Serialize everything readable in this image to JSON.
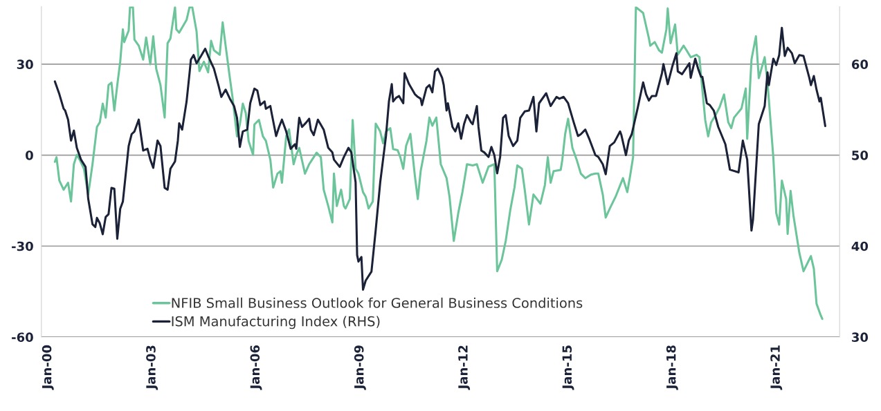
{
  "chart_data": {
    "type": "line",
    "xlim": [
      "1999-10-25",
      "2022-10-30"
    ],
    "xticks": [
      {
        "value": "2000-01-01",
        "label": "Jan-00"
      },
      {
        "value": "2003-01-01",
        "label": "Jan-03"
      },
      {
        "value": "2006-01-01",
        "label": "Jan-06"
      },
      {
        "value": "2009-01-01",
        "label": "Jan-09"
      },
      {
        "value": "2012-01-01",
        "label": "Jan-12"
      },
      {
        "value": "2015-01-01",
        "label": "Jan-15"
      },
      {
        "value": "2018-01-01",
        "label": "Jan-18"
      },
      {
        "value": "2021-01-01",
        "label": "Jan-21"
      }
    ],
    "ylim": [
      -60,
      49
    ],
    "yticks": [
      -60,
      -30,
      0,
      30
    ],
    "y2lim": [
      30,
      66.33
    ],
    "y2ticks": [
      30,
      40,
      50,
      60
    ],
    "grid": "y",
    "legend": "bottom",
    "series": [
      {
        "name": "NFIB Small Business Outlook for General Business Conditions",
        "color": "#6cc59a",
        "x": [
          "2000-03-15",
          "2000-04-01",
          "2000-05-01",
          "2000-06-15",
          "2000-08-01",
          "2000-09-01",
          "2000-10-01",
          "2000-11-01",
          "2000-12-01",
          "2001-01-15",
          "2001-03-01",
          "2001-04-15",
          "2001-06-01",
          "2001-07-01",
          "2001-08-01",
          "2001-09-01",
          "2001-10-01",
          "2001-11-01",
          "2001-12-01",
          "2002-01-01",
          "2002-02-01",
          "2002-03-01",
          "2002-03-15",
          "2002-05-01",
          "2002-05-15",
          "2002-06-15",
          "2002-07-01",
          "2002-08-15",
          "2002-10-01",
          "2002-11-01",
          "2002-12-15",
          "2003-01-15",
          "2003-02-15",
          "2003-04-01",
          "2003-05-15",
          "2003-06-15",
          "2003-07-15",
          "2003-09-01",
          "2003-09-15",
          "2003-10-15",
          "2004-01-01",
          "2004-02-01",
          "2004-03-01",
          "2004-04-15",
          "2004-05-15",
          "2004-07-01",
          "2004-08-15",
          "2004-09-15",
          "2004-10-15",
          "2004-12-15",
          "2005-01-15",
          "2005-02-15",
          "2005-04-01",
          "2005-05-01",
          "2005-06-15",
          "2005-07-15",
          "2005-08-15",
          "2005-09-15",
          "2005-10-15",
          "2005-12-01",
          "2005-12-15",
          "2006-02-01",
          "2006-03-15",
          "2006-04-15",
          "2006-06-01",
          "2006-07-01",
          "2006-08-15",
          "2006-09-15",
          "2006-10-01",
          "2006-11-15",
          "2006-12-15",
          "2007-02-01",
          "2007-03-01",
          "2007-04-01",
          "2007-06-01",
          "2007-07-15",
          "2007-08-15",
          "2007-10-01",
          "2007-11-15",
          "2007-12-15",
          "2008-02-01",
          "2008-03-15",
          "2008-04-01",
          "2008-05-01",
          "2008-06-15",
          "2008-07-15",
          "2008-08-01",
          "2008-09-15",
          "2008-10-15",
          "2008-11-15",
          "2008-12-15",
          "2009-02-01",
          "2009-03-01",
          "2009-04-01",
          "2009-05-15",
          "2009-06-15",
          "2009-08-01",
          "2009-09-01",
          "2009-10-01",
          "2009-11-15",
          "2009-12-15",
          "2010-02-01",
          "2010-03-01",
          "2010-04-01",
          "2010-05-01",
          "2010-06-15",
          "2010-08-01",
          "2010-09-01",
          "2010-10-01",
          "2010-12-01",
          "2011-01-01",
          "2011-02-01",
          "2011-03-15",
          "2011-05-01",
          "2011-07-01",
          "2011-08-01",
          "2011-09-15",
          "2011-11-01",
          "2011-12-15",
          "2012-02-01",
          "2012-04-01",
          "2012-05-15",
          "2012-07-15",
          "2012-09-15",
          "2012-11-15",
          "2012-12-15",
          "2013-02-01",
          "2013-03-15",
          "2013-05-01",
          "2013-06-15",
          "2013-07-15",
          "2013-09-01",
          "2013-10-01",
          "2013-11-15",
          "2014-01-01",
          "2014-03-15",
          "2014-05-01",
          "2014-06-01",
          "2014-07-01",
          "2014-08-01",
          "2014-10-15",
          "2014-11-01",
          "2014-12-01",
          "2015-01-01",
          "2015-02-15",
          "2015-04-01",
          "2015-05-15",
          "2015-07-01",
          "2015-09-01",
          "2015-10-15",
          "2015-11-15",
          "2016-01-01",
          "2016-02-01",
          "2016-03-15",
          "2016-05-15",
          "2016-08-01",
          "2016-09-15",
          "2016-10-15",
          "2016-11-15",
          "2016-12-15",
          "2017-03-01",
          "2017-05-01",
          "2017-05-15",
          "2017-07-01",
          "2017-08-15",
          "2017-09-15",
          "2017-11-01",
          "2017-11-15",
          "2017-12-15",
          "2018-02-01",
          "2018-03-01",
          "2018-05-01",
          "2018-06-01",
          "2018-07-15",
          "2018-09-15",
          "2018-10-15",
          "2018-11-01",
          "2018-12-15",
          "2019-01-15",
          "2019-02-15",
          "2019-04-01",
          "2019-05-15",
          "2019-07-01",
          "2019-08-15",
          "2019-09-15",
          "2019-10-15",
          "2020-01-01",
          "2020-02-15",
          "2020-03-01",
          "2020-04-15",
          "2020-06-01",
          "2020-07-01",
          "2020-09-01",
          "2020-10-01",
          "2020-12-01",
          "2021-01-01",
          "2021-02-01",
          "2021-03-01",
          "2021-04-15",
          "2021-05-01",
          "2021-06-01",
          "2021-07-01",
          "2021-09-01",
          "2021-10-15",
          "2022-01-01",
          "2022-02-01",
          "2022-03-01",
          "2022-04-15",
          "2022-05-01"
        ],
        "values": [
          -2.2,
          -0.7,
          -8.4,
          -11.4,
          -9.1,
          -15.3,
          -3.0,
          0.1,
          -1.5,
          -4.5,
          -13.0,
          -3.0,
          9.3,
          10.8,
          17.0,
          12.4,
          23.1,
          23.9,
          14.7,
          23.1,
          30.8,
          41.5,
          37.3,
          41.1,
          48.8,
          48.8,
          38.1,
          36.1,
          31.5,
          38.8,
          30.0,
          39.2,
          28.5,
          23.1,
          12.4,
          36.9,
          38.5,
          48.8,
          41.5,
          40.4,
          44.6,
          48.8,
          48.8,
          40.8,
          27.7,
          30.8,
          27.3,
          37.7,
          34.6,
          33.1,
          43.8,
          36.1,
          25.4,
          18.5,
          6.2,
          10.1,
          17.0,
          13.9,
          4.7,
          0.1,
          10.1,
          11.6,
          6.2,
          4.7,
          -1.5,
          -10.7,
          -6.1,
          -5.3,
          -9.1,
          6.2,
          8.5,
          -3.0,
          0.1,
          2.4,
          -6.1,
          -3.0,
          -1.5,
          0.8,
          -0.7,
          -11.4,
          -16.8,
          -22.2,
          -6.1,
          -16.8,
          -11.4,
          -16.8,
          -17.6,
          -14.5,
          11.6,
          -4.5,
          -6.1,
          -12.2,
          -13.7,
          -17.6,
          -15.3,
          10.4,
          7.8,
          3.9,
          7.8,
          8.9,
          2.0,
          1.6,
          -0.7,
          -4.5,
          3.1,
          7.0,
          -6.8,
          -14.5,
          -5.3,
          4.7,
          12.4,
          9.7,
          12.4,
          -3.0,
          -7.6,
          -13.7,
          -28.3,
          -19.1,
          -12.2,
          -3.0,
          -3.4,
          -3.0,
          -9.1,
          -3.8,
          -3.0,
          -38.3,
          -34.5,
          -28.3,
          -18.3,
          -10.7,
          -3.4,
          -4.5,
          -11.4,
          -22.9,
          -13.0,
          -16.0,
          -9.9,
          -0.7,
          -9.1,
          -5.3,
          -4.9,
          -1.5,
          7.0,
          12.0,
          2.4,
          -1.5,
          -6.1,
          -7.6,
          -6.4,
          -6.1,
          -6.1,
          -13.0,
          -20.6,
          -17.6,
          -13.7,
          -7.6,
          -12.2,
          -6.8,
          -0.7,
          48.8,
          46.9,
          38.5,
          36.1,
          37.3,
          34.6,
          33.8,
          41.5,
          48.4,
          36.9,
          43.1,
          33.1,
          36.1,
          34.6,
          32.3,
          33.1,
          32.3,
          26.2,
          11.6,
          6.2,
          10.8,
          13.1,
          15.8,
          20.0,
          10.8,
          8.9,
          12.4,
          15.4,
          22.0,
          5.4,
          31.5,
          39.2,
          25.4,
          32.3,
          23.9,
          -0.7,
          -19.1,
          -22.9,
          -8.4,
          -14.5,
          -26.0,
          -11.8,
          -19.9,
          -32.2,
          -38.3,
          -33.3,
          -37.5,
          -49.0,
          -52.9,
          -54.0
        ]
      },
      {
        "name": "ISM Manufacturing Index (RHS)",
        "color": "#1b2238",
        "axis": "y2",
        "x": [
          "2000-03-15",
          "2000-05-01",
          "2000-06-15",
          "2000-07-01",
          "2000-08-01",
          "2000-09-01",
          "2000-10-01",
          "2000-11-01",
          "2000-12-15",
          "2001-02-01",
          "2001-03-01",
          "2001-04-15",
          "2001-05-15",
          "2001-06-01",
          "2001-07-01",
          "2001-08-01",
          "2001-09-01",
          "2001-10-01",
          "2001-11-01",
          "2001-12-01",
          "2002-01-01",
          "2002-02-01",
          "2002-03-01",
          "2002-04-01",
          "2002-05-01",
          "2002-06-01",
          "2002-07-01",
          "2002-08-15",
          "2002-10-01",
          "2002-11-15",
          "2002-12-15",
          "2003-01-15",
          "2003-03-01",
          "2003-04-01",
          "2003-05-15",
          "2003-06-15",
          "2003-07-15",
          "2003-09-01",
          "2003-10-01",
          "2003-10-15",
          "2003-11-15",
          "2004-01-01",
          "2004-02-01",
          "2004-02-15",
          "2004-03-15",
          "2004-04-15",
          "2004-06-01",
          "2004-07-15",
          "2004-08-15",
          "2004-10-15",
          "2004-12-01",
          "2005-01-01",
          "2005-02-15",
          "2005-04-01",
          "2005-05-15",
          "2005-06-15",
          "2005-07-15",
          "2005-08-15",
          "2005-10-01",
          "2005-11-01",
          "2005-12-15",
          "2006-01-15",
          "2006-02-15",
          "2006-04-01",
          "2006-04-15",
          "2006-06-01",
          "2006-06-15",
          "2006-08-01",
          "2006-09-01",
          "2006-10-01",
          "2006-11-15",
          "2007-01-01",
          "2007-02-15",
          "2007-03-01",
          "2007-04-01",
          "2007-05-01",
          "2007-06-15",
          "2007-07-15",
          "2007-08-01",
          "2007-09-01",
          "2007-10-15",
          "2007-12-15",
          "2008-02-01",
          "2008-03-15",
          "2008-04-01",
          "2008-06-01",
          "2008-07-15",
          "2008-09-01",
          "2008-10-01",
          "2008-11-15",
          "2008-12-01",
          "2008-12-15",
          "2009-01-15",
          "2009-02-01",
          "2009-03-01",
          "2009-05-01",
          "2009-06-15",
          "2009-08-01",
          "2009-10-01",
          "2009-11-01",
          "2009-12-01",
          "2009-12-15",
          "2010-01-15",
          "2010-02-15",
          "2010-04-01",
          "2010-04-15",
          "2010-06-01",
          "2010-08-01",
          "2010-09-01",
          "2010-10-01",
          "2010-10-15",
          "2010-12-01",
          "2011-01-01",
          "2011-02-01",
          "2011-03-01",
          "2011-04-01",
          "2011-05-15",
          "2011-06-01",
          "2011-07-01",
          "2011-07-15",
          "2011-09-01",
          "2011-10-01",
          "2011-11-01",
          "2011-12-01",
          "2012-01-01",
          "2012-02-01",
          "2012-03-15",
          "2012-04-01",
          "2012-05-15",
          "2012-06-01",
          "2012-07-01",
          "2012-08-01",
          "2012-09-15",
          "2012-10-15",
          "2012-11-15",
          "2012-12-15",
          "2013-01-15",
          "2013-02-15",
          "2013-03-15",
          "2013-04-15",
          "2013-06-01",
          "2013-07-15",
          "2013-08-15",
          "2013-10-01",
          "2013-11-15",
          "2014-01-01",
          "2014-02-01",
          "2014-03-01",
          "2014-05-15",
          "2014-07-01",
          "2014-09-01",
          "2014-10-01",
          "2014-11-15",
          "2015-01-01",
          "2015-03-01",
          "2015-04-15",
          "2015-05-15",
          "2015-07-01",
          "2015-08-15",
          "2015-10-15",
          "2015-11-15",
          "2016-01-01",
          "2016-02-01",
          "2016-03-15",
          "2016-05-01",
          "2016-07-01",
          "2016-07-15",
          "2016-09-01",
          "2016-10-01",
          "2016-11-01",
          "2017-01-01",
          "2017-03-01",
          "2017-04-01",
          "2017-05-01",
          "2017-06-01",
          "2017-07-15",
          "2017-09-15",
          "2017-10-01",
          "2017-11-15",
          "2018-01-01",
          "2018-02-15",
          "2018-03-01",
          "2018-04-15",
          "2018-07-01",
          "2018-07-15",
          "2018-09-01",
          "2018-10-01",
          "2018-11-01",
          "2018-11-15",
          "2019-01-01",
          "2019-02-01",
          "2019-03-15",
          "2019-05-01",
          "2019-07-15",
          "2019-09-01",
          "2019-12-01",
          "2020-01-15",
          "2020-03-01",
          "2020-04-15",
          "2020-05-01",
          "2020-07-01",
          "2020-09-01",
          "2020-10-01",
          "2020-10-15",
          "2020-12-01",
          "2021-01-01",
          "2021-02-01",
          "2021-03-01",
          "2021-04-01",
          "2021-05-01",
          "2021-06-15",
          "2021-07-15",
          "2021-09-01",
          "2021-10-15",
          "2021-12-15",
          "2022-01-01",
          "2022-02-01",
          "2022-03-01",
          "2022-04-01",
          "2022-04-15",
          "2022-06-01"
        ],
        "values": [
          58.1,
          56.7,
          55.1,
          54.9,
          53.9,
          51.6,
          52.7,
          50.8,
          49.5,
          48.7,
          45.2,
          42.4,
          42.1,
          43.1,
          42.5,
          41.3,
          43.2,
          43.5,
          46.4,
          46.3,
          40.8,
          44.1,
          44.9,
          48.0,
          51.0,
          52.3,
          52.6,
          53.9,
          50.5,
          50.7,
          49.5,
          48.6,
          51.6,
          51.0,
          46.4,
          46.2,
          48.5,
          49.3,
          51.6,
          53.5,
          52.8,
          55.9,
          59.0,
          60.5,
          61.0,
          60.1,
          60.9,
          61.7,
          60.9,
          59.5,
          57.7,
          56.4,
          57.2,
          56.2,
          55.4,
          54.1,
          50.9,
          52.6,
          52.8,
          55.7,
          57.3,
          57.1,
          55.5,
          55.9,
          55.1,
          55.4,
          54.6,
          52.1,
          53.1,
          53.9,
          52.6,
          50.7,
          51.2,
          50.7,
          54.1,
          53.1,
          53.6,
          54.0,
          52.8,
          52.2,
          53.9,
          52.8,
          50.8,
          50.3,
          49.5,
          48.7,
          49.8,
          50.8,
          50.3,
          47.0,
          39.0,
          38.3,
          38.8,
          35.2,
          36.2,
          37.2,
          41.8,
          47.0,
          52.1,
          55.9,
          57.8,
          55.9,
          56.3,
          56.5,
          55.7,
          59.0,
          57.8,
          56.7,
          56.4,
          56.2,
          55.5,
          57.4,
          57.7,
          56.9,
          59.2,
          59.5,
          58.5,
          57.7,
          54.9,
          55.7,
          53.1,
          52.6,
          53.5,
          51.8,
          53.4,
          54.4,
          53.6,
          53.4,
          55.4,
          53.1,
          50.5,
          50.3,
          49.8,
          50.9,
          50.0,
          48.0,
          49.8,
          54.1,
          54.4,
          52.1,
          51.0,
          51.6,
          54.1,
          54.8,
          54.9,
          56.4,
          52.6,
          55.7,
          56.8,
          55.4,
          56.4,
          56.2,
          56.4,
          55.7,
          53.6,
          52.1,
          52.3,
          52.8,
          51.7,
          50.0,
          49.8,
          49.0,
          47.9,
          51.0,
          51.4,
          52.6,
          52.2,
          50.0,
          51.6,
          52.3,
          55.1,
          58.0,
          56.7,
          56.0,
          56.5,
          56.5,
          59.0,
          60.0,
          57.8,
          59.7,
          61.2,
          59.2,
          58.9,
          60.1,
          58.5,
          60.6,
          59.5,
          58.6,
          58.6,
          55.7,
          55.5,
          54.9,
          53.1,
          51.2,
          48.4,
          48.1,
          51.6,
          49.5,
          41.7,
          42.9,
          53.4,
          55.4,
          59.1,
          57.7,
          60.6,
          59.9,
          61.0,
          64.0,
          60.9,
          61.8,
          61.2,
          60.1,
          61.0,
          60.9,
          58.5,
          57.7,
          58.7,
          57.2,
          55.9,
          56.3,
          53.2
        ]
      }
    ]
  }
}
